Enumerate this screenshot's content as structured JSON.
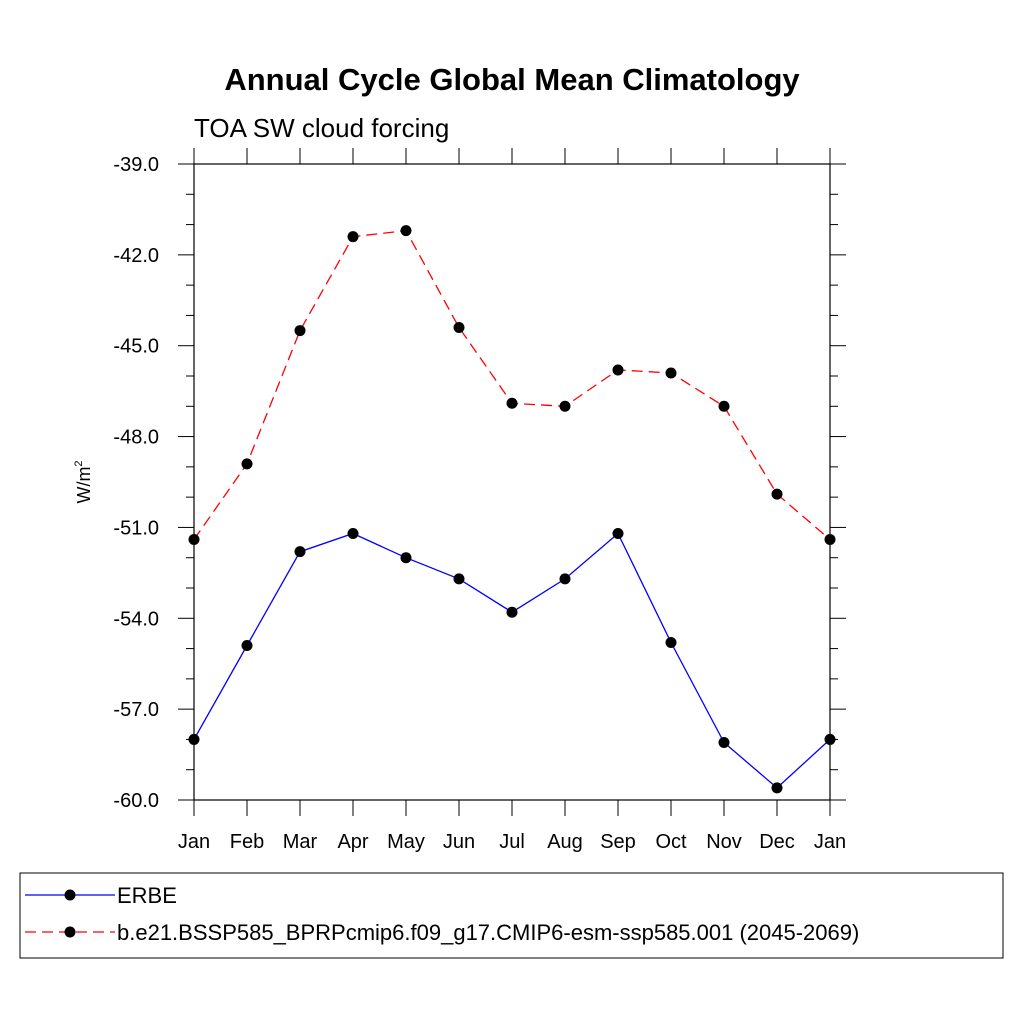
{
  "chart_data": {
    "type": "line",
    "title": "Annual Cycle Global Mean Climatology",
    "subtitle": "TOA SW cloud forcing",
    "ylabel": "W/m",
    "ylabel_sup": "2",
    "xlabel": "",
    "categories": [
      "Jan",
      "Feb",
      "Mar",
      "Apr",
      "May",
      "Jun",
      "Jul",
      "Aug",
      "Sep",
      "Oct",
      "Nov",
      "Dec",
      "Jan"
    ],
    "ylim": [
      -60.0,
      -39.0
    ],
    "yticks": [
      -60.0,
      -57.0,
      -54.0,
      -51.0,
      -48.0,
      -45.0,
      -42.0,
      -39.0
    ],
    "ytick_labels": [
      "-60.0",
      "-57.0",
      "-54.0",
      "-51.0",
      "-48.0",
      "-45.0",
      "-42.0",
      "-39.0"
    ],
    "y_minor_step": 1.0,
    "grid": false,
    "legend_position": "bottom",
    "series": [
      {
        "name": "ERBE",
        "color": "#0000ff",
        "dash": "solid",
        "marker": "filled-circle",
        "values": [
          -58.0,
          -54.9,
          -51.8,
          -51.2,
          -52.0,
          -52.7,
          -53.8,
          -52.7,
          -51.2,
          -54.8,
          -58.1,
          -59.6,
          -58.0
        ]
      },
      {
        "name": "b.e21.BSSP585_BPRPcmip6.f09_g17.CMIP6-esm-ssp585.001 (2045-2069)",
        "color": "#ff0000",
        "dash": "dashed",
        "marker": "filled-circle",
        "values": [
          -51.4,
          -48.9,
          -44.5,
          -41.4,
          -41.2,
          -44.4,
          -46.9,
          -47.0,
          -45.8,
          -45.9,
          -47.0,
          -49.9,
          -51.4
        ]
      }
    ]
  }
}
